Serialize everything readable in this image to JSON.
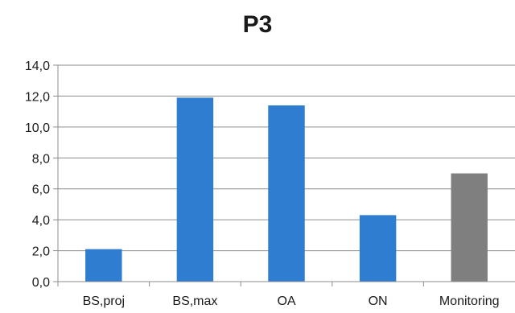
{
  "chart_data": {
    "type": "bar",
    "title": "P3",
    "xlabel": "",
    "ylabel": "",
    "categories": [
      "BS,proj",
      "BS,max",
      "OA",
      "ON",
      "Monitoring"
    ],
    "values": [
      2.1,
      11.9,
      11.4,
      4.3,
      7.0
    ],
    "bar_colors": [
      "#2e7dd1",
      "#2e7dd1",
      "#2e7dd1",
      "#2e7dd1",
      "#7f7f7f"
    ],
    "ylim": [
      0,
      14
    ],
    "y_ticks": [
      "0,0",
      "2,0",
      "4,0",
      "6,0",
      "8,0",
      "10,0",
      "12,0",
      "14,0"
    ],
    "grid": true,
    "legend": "none"
  }
}
